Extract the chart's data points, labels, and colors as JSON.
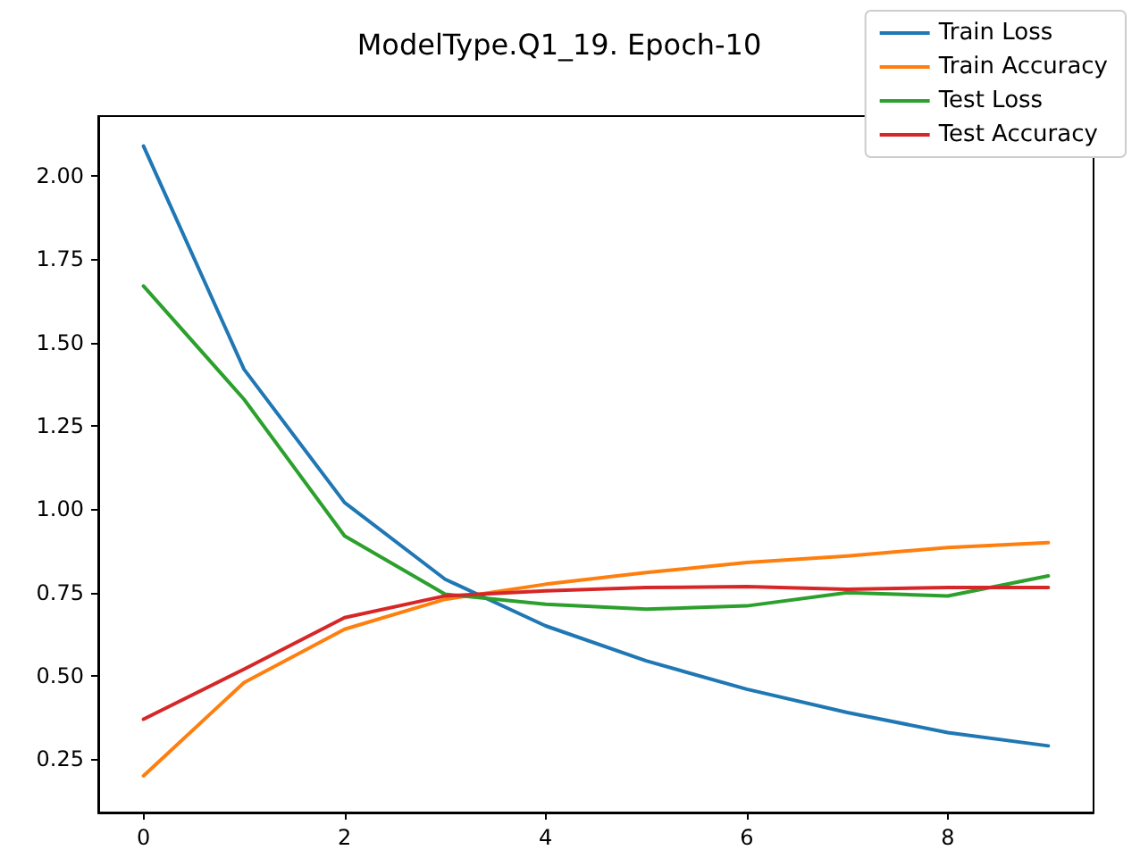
{
  "chart_data": {
    "type": "line",
    "title": "ModelType.Q1_19. Epoch-10",
    "x": [
      0,
      1,
      2,
      3,
      4,
      5,
      6,
      7,
      8,
      9
    ],
    "series": [
      {
        "name": "Train Loss",
        "color": "#1f77b4",
        "values": [
          2.09,
          1.42,
          1.02,
          0.79,
          0.65,
          0.545,
          0.46,
          0.39,
          0.33,
          0.29
        ]
      },
      {
        "name": "Train Accuracy",
        "color": "#ff7f0e",
        "values": [
          0.2,
          0.48,
          0.64,
          0.73,
          0.775,
          0.81,
          0.84,
          0.86,
          0.885,
          0.9
        ]
      },
      {
        "name": "Test Loss",
        "color": "#2ca02c",
        "values": [
          1.67,
          1.33,
          0.92,
          0.745,
          0.715,
          0.7,
          0.71,
          0.75,
          0.74,
          0.8
        ]
      },
      {
        "name": "Test Accuracy",
        "color": "#d62728",
        "values": [
          0.37,
          0.52,
          0.675,
          0.74,
          0.755,
          0.765,
          0.768,
          0.76,
          0.765,
          0.765
        ]
      }
    ],
    "xlim": [
      -0.45,
      9.45
    ],
    "xticks": [
      0,
      2,
      4,
      6,
      8
    ],
    "ylim": [
      0.09,
      2.18
    ],
    "yticks": [
      0.25,
      {
        "value": 0.5,
        "label": "0.50"
      },
      0.75,
      {
        "value": 1,
        "label": "1.00"
      },
      1.25,
      {
        "value": 1.5,
        "label": "1.50"
      },
      1.75,
      {
        "value": 2,
        "label": "2.00"
      }
    ],
    "grid": false,
    "legend": "top right",
    "marker": "none",
    "line_style": "solid"
  }
}
